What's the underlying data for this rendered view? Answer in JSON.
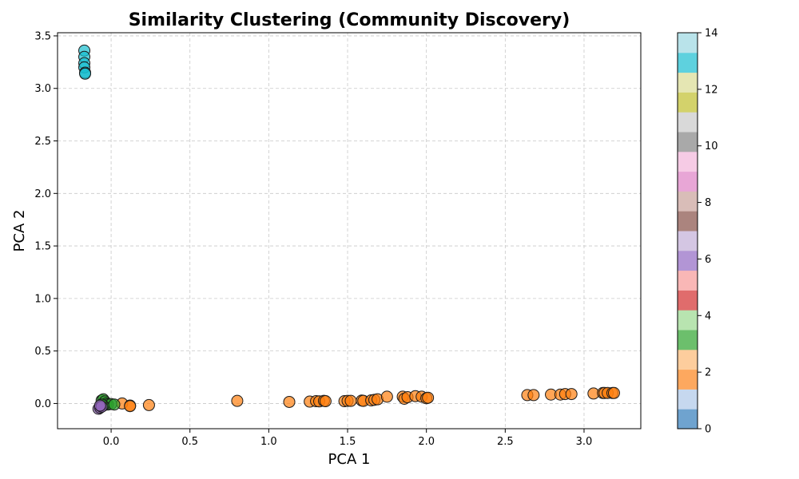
{
  "chart_data": {
    "type": "scatter",
    "title": "Similarity Clustering (Community Discovery)",
    "xlabel": "PCA 1",
    "ylabel": "PCA 2",
    "xlim": [
      -0.34,
      3.36
    ],
    "ylim": [
      -0.24,
      3.53
    ],
    "xticks": [
      0.0,
      0.5,
      1.0,
      1.5,
      2.0,
      2.5,
      3.0
    ],
    "yticks": [
      0.0,
      0.5,
      1.0,
      1.5,
      2.0,
      2.5,
      3.0,
      3.5
    ],
    "grid": true,
    "colormap": "tab20",
    "colorbar": {
      "min": 0,
      "max": 14,
      "ticks": [
        0,
        2,
        4,
        6,
        8,
        10,
        12,
        14
      ],
      "colors": [
        "#6fa3cf",
        "#c6d8ef",
        "#fda85f",
        "#fdcd9d",
        "#6cbf6c",
        "#b8e4b0",
        "#e06c6c",
        "#f9b7b6",
        "#b295d5",
        "#d4c6e3",
        "#ab847e",
        "#d9bdb8",
        "#e8a6d6",
        "#f6cbe5",
        "#a9a9a9",
        "#d9d9d9",
        "#d3d26b",
        "#e5e6b3",
        "#5ed1de",
        "#b9e3ea"
      ]
    },
    "clusters": [
      {
        "cluster": 13,
        "color": "#17becf",
        "points": [
          [
            -0.17,
            3.36
          ],
          [
            -0.17,
            3.3
          ],
          [
            -0.17,
            3.24
          ],
          [
            -0.17,
            3.2
          ],
          [
            -0.165,
            3.15
          ],
          [
            -0.165,
            3.14
          ]
        ]
      },
      {
        "cluster": 2,
        "color": "#ff7f0e",
        "points": [
          [
            0.07,
            0.0
          ],
          [
            0.12,
            -0.02
          ],
          [
            0.12,
            -0.025
          ],
          [
            0.24,
            -0.015
          ],
          [
            0.8,
            0.025
          ],
          [
            1.13,
            0.015
          ],
          [
            1.26,
            0.018
          ],
          [
            1.3,
            0.022
          ],
          [
            1.32,
            0.02
          ],
          [
            1.35,
            0.025
          ],
          [
            1.36,
            0.022
          ],
          [
            1.48,
            0.022
          ],
          [
            1.5,
            0.025
          ],
          [
            1.52,
            0.025
          ],
          [
            1.59,
            0.028
          ],
          [
            1.6,
            0.025
          ],
          [
            1.65,
            0.03
          ],
          [
            1.67,
            0.035
          ],
          [
            1.69,
            0.04
          ],
          [
            1.75,
            0.065
          ],
          [
            1.85,
            0.065
          ],
          [
            1.86,
            0.045
          ],
          [
            1.88,
            0.06
          ],
          [
            1.93,
            0.07
          ],
          [
            1.97,
            0.065
          ],
          [
            2.0,
            0.05
          ],
          [
            2.01,
            0.055
          ],
          [
            2.64,
            0.08
          ],
          [
            2.68,
            0.08
          ],
          [
            2.79,
            0.085
          ],
          [
            2.85,
            0.085
          ],
          [
            2.88,
            0.09
          ],
          [
            2.92,
            0.09
          ],
          [
            3.06,
            0.095
          ],
          [
            3.12,
            0.1
          ],
          [
            3.13,
            0.1
          ],
          [
            3.15,
            0.1
          ],
          [
            3.18,
            0.1
          ],
          [
            3.19,
            0.1
          ]
        ]
      },
      {
        "cluster": 4,
        "color": "#2ca02c",
        "points": [
          [
            -0.06,
            0.03
          ],
          [
            -0.05,
            0.04
          ],
          [
            -0.04,
            0.02
          ],
          [
            -0.03,
            0.0
          ],
          [
            -0.02,
            -0.01
          ],
          [
            0.0,
            -0.005
          ],
          [
            0.02,
            -0.01
          ],
          [
            -0.05,
            -0.02
          ],
          [
            -0.06,
            -0.01
          ]
        ]
      },
      {
        "cluster": 8,
        "color": "#9467bd",
        "points": [
          [
            -0.08,
            -0.05
          ],
          [
            -0.07,
            -0.04
          ],
          [
            -0.06,
            -0.03
          ],
          [
            -0.07,
            -0.02
          ]
        ]
      }
    ]
  }
}
